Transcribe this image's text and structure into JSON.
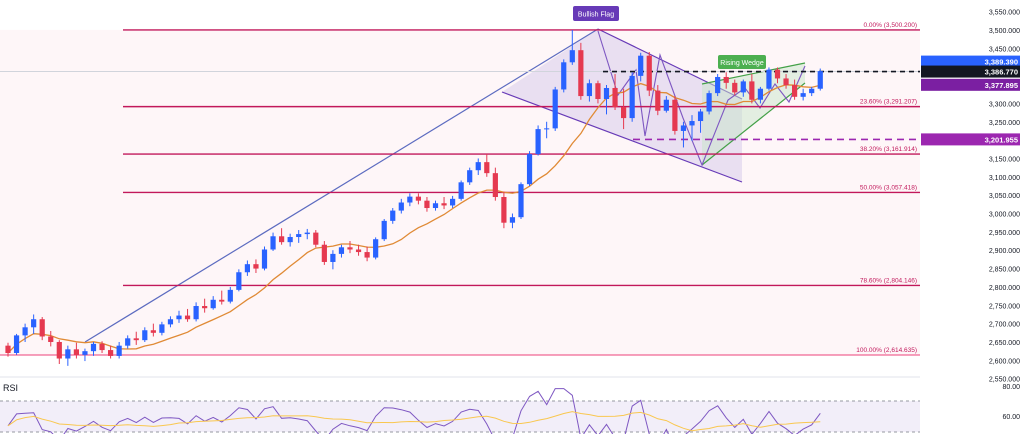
{
  "chart_data": {
    "type": "candlestick",
    "y_axis_ticks": [
      "3,550.000",
      "3,500.000",
      "3,450.000",
      "3,400.000",
      "3,350.000",
      "3,300.000",
      "3,250.000",
      "3,200.000",
      "3,150.000",
      "3,100.000",
      "3,050.000",
      "3,000.000",
      "2,950.000",
      "2,900.000",
      "2,850.000",
      "2,800.000",
      "2,750.000",
      "2,700.000",
      "2,650.000",
      "2,600.000",
      "2,550.000"
    ],
    "ylim": [
      2535,
      3572
    ],
    "fib_levels": [
      {
        "label": "0.00% (3,500.200)",
        "value": 3500.2
      },
      {
        "label": "23.60% (3,291.207)",
        "value": 3291.207
      },
      {
        "label": "38.20% (3,161.914)",
        "value": 3161.914
      },
      {
        "label": "50.00% (3,057.418)",
        "value": 3057.418
      },
      {
        "label": "78.60% (2,804.146)",
        "value": 2804.146
      },
      {
        "label": "100.00% (2,614.635)",
        "value": 2614.635
      }
    ],
    "price_labels": [
      {
        "text": "3,389.390",
        "value": 3389.39,
        "color": "#2962ff"
      },
      {
        "text": "3,386.770",
        "value": 3386.77,
        "color": "#131722"
      },
      {
        "text": "3,377.895",
        "value": 3377.895,
        "color": "#7b1fa2"
      },
      {
        "text": "3,201.955",
        "value": 3201.955,
        "color": "#9c27b0"
      }
    ],
    "resistance_level": 3386.77,
    "support_level": 3201.955,
    "annotations": [
      {
        "text": "Bullish Flag",
        "color": "#673ab7"
      },
      {
        "text": "Rising Wedge",
        "color": "#4caf50"
      }
    ],
    "candles": [
      [
        2640,
        2648,
        2610,
        2620
      ],
      [
        2620,
        2672,
        2615,
        2668
      ],
      [
        2668,
        2700,
        2650,
        2690
      ],
      [
        2690,
        2725,
        2672,
        2712
      ],
      [
        2712,
        2718,
        2655,
        2665
      ],
      [
        2665,
        2680,
        2638,
        2650
      ],
      [
        2650,
        2655,
        2590,
        2605
      ],
      [
        2605,
        2640,
        2585,
        2630
      ],
      [
        2630,
        2648,
        2605,
        2615
      ],
      [
        2615,
        2632,
        2598,
        2625
      ],
      [
        2625,
        2650,
        2612,
        2645
      ],
      [
        2645,
        2652,
        2620,
        2628
      ],
      [
        2628,
        2640,
        2605,
        2612
      ],
      [
        2612,
        2650,
        2605,
        2640
      ],
      [
        2640,
        2668,
        2632,
        2660
      ],
      [
        2660,
        2678,
        2642,
        2655
      ],
      [
        2655,
        2690,
        2650,
        2682
      ],
      [
        2682,
        2700,
        2665,
        2675
      ],
      [
        2675,
        2705,
        2668,
        2698
      ],
      [
        2698,
        2720,
        2690,
        2712
      ],
      [
        2712,
        2735,
        2702,
        2722
      ],
      [
        2722,
        2740,
        2705,
        2712
      ],
      [
        2712,
        2758,
        2706,
        2748
      ],
      [
        2748,
        2768,
        2730,
        2742
      ],
      [
        2742,
        2775,
        2738,
        2765
      ],
      [
        2765,
        2790,
        2752,
        2760
      ],
      [
        2760,
        2800,
        2755,
        2792
      ],
      [
        2792,
        2848,
        2788,
        2840
      ],
      [
        2840,
        2872,
        2830,
        2862
      ],
      [
        2862,
        2875,
        2838,
        2850
      ],
      [
        2850,
        2910,
        2845,
        2902
      ],
      [
        2902,
        2948,
        2898,
        2938
      ],
      [
        2938,
        2960,
        2915,
        2922
      ],
      [
        2922,
        2945,
        2910,
        2936
      ],
      [
        2936,
        2955,
        2920,
        2944
      ],
      [
        2944,
        2958,
        2930,
        2948
      ],
      [
        2948,
        2955,
        2908,
        2915
      ],
      [
        2915,
        2925,
        2860,
        2868
      ],
      [
        2868,
        2900,
        2848,
        2890
      ],
      [
        2890,
        2915,
        2880,
        2908
      ],
      [
        2908,
        2925,
        2892,
        2902
      ],
      [
        2902,
        2915,
        2885,
        2895
      ],
      [
        2895,
        2910,
        2870,
        2880
      ],
      [
        2880,
        2935,
        2875,
        2930
      ],
      [
        2930,
        2985,
        2925,
        2980
      ],
      [
        2980,
        3015,
        2972,
        3008
      ],
      [
        3008,
        3040,
        3000,
        3030
      ],
      [
        3030,
        3055,
        3020,
        3046
      ],
      [
        3046,
        3055,
        3025,
        3035
      ],
      [
        3035,
        3045,
        3005,
        3015
      ],
      [
        3015,
        3035,
        3008,
        3028
      ],
      [
        3028,
        3045,
        3012,
        3022
      ],
      [
        3022,
        3048,
        3015,
        3040
      ],
      [
        3040,
        3090,
        3035,
        3085
      ],
      [
        3085,
        3125,
        3078,
        3118
      ],
      [
        3118,
        3150,
        3105,
        3140
      ],
      [
        3140,
        3162,
        3100,
        3110
      ],
      [
        3110,
        3125,
        3035,
        3045
      ],
      [
        3045,
        3060,
        2960,
        2975
      ],
      [
        2975,
        3000,
        2960,
        2990
      ],
      [
        2990,
        3085,
        2985,
        3080
      ],
      [
        3080,
        3170,
        3075,
        3162
      ],
      [
        3162,
        3240,
        3158,
        3230
      ],
      [
        3230,
        3250,
        3205,
        3232
      ],
      [
        3232,
        3345,
        3225,
        3338
      ],
      [
        3338,
        3420,
        3330,
        3412
      ],
      [
        3412,
        3500,
        3405,
        3445
      ],
      [
        3445,
        3465,
        3310,
        3320
      ],
      [
        3320,
        3365,
        3305,
        3355
      ],
      [
        3355,
        3362,
        3300,
        3312
      ],
      [
        3312,
        3350,
        3270,
        3342
      ],
      [
        3342,
        3380,
        3282,
        3290
      ],
      [
        3290,
        3340,
        3230,
        3260
      ],
      [
        3260,
        3385,
        3250,
        3375
      ],
      [
        3375,
        3438,
        3360,
        3430
      ],
      [
        3430,
        3440,
        3320,
        3335
      ],
      [
        3335,
        3350,
        3268,
        3280
      ],
      [
        3280,
        3320,
        3275,
        3310
      ],
      [
        3310,
        3320,
        3215,
        3225
      ],
      [
        3225,
        3250,
        3180,
        3240
      ],
      [
        3240,
        3268,
        3198,
        3252
      ],
      [
        3252,
        3285,
        3220,
        3278
      ],
      [
        3278,
        3335,
        3270,
        3328
      ],
      [
        3328,
        3380,
        3320,
        3372
      ],
      [
        3372,
        3385,
        3340,
        3356
      ],
      [
        3356,
        3365,
        3322,
        3330
      ],
      [
        3330,
        3365,
        3318,
        3360
      ],
      [
        3360,
        3380,
        3300,
        3310
      ],
      [
        3310,
        3345,
        3300,
        3340
      ],
      [
        3340,
        3398,
        3335,
        3392
      ],
      [
        3392,
        3398,
        3355,
        3368
      ],
      [
        3368,
        3380,
        3340,
        3350
      ],
      [
        3350,
        3365,
        3310,
        3318
      ],
      [
        3318,
        3340,
        3308,
        3328
      ],
      [
        3328,
        3345,
        3320,
        3340
      ],
      [
        3340,
        3395,
        3335,
        3388
      ]
    ],
    "rsi": {
      "label": "RSI",
      "axis_ticks": [
        "80.00",
        "60.00"
      ]
    }
  }
}
